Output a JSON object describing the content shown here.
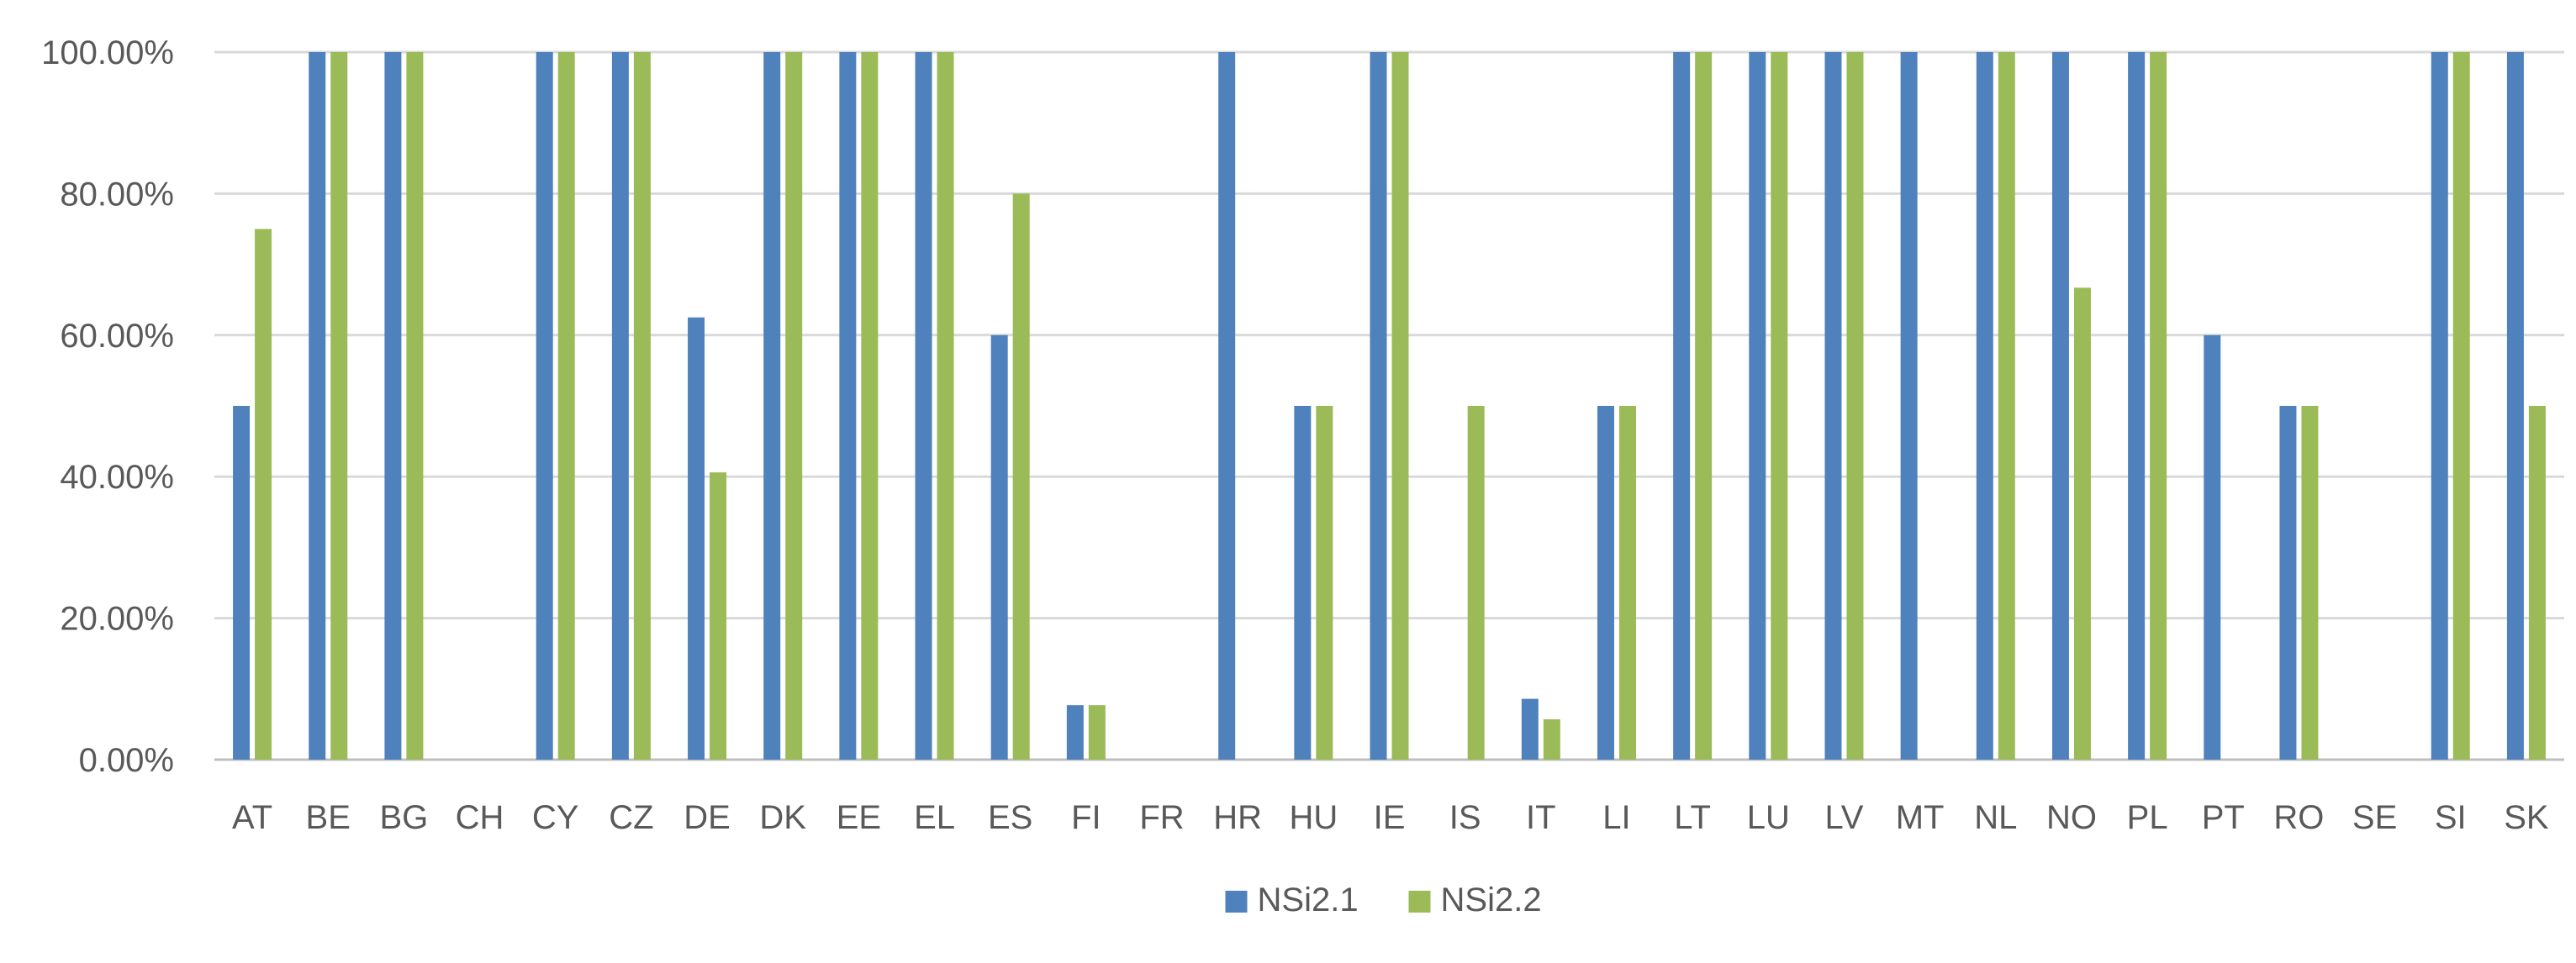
{
  "chart_data": {
    "type": "bar",
    "title": "",
    "xlabel": "",
    "ylabel": "",
    "ylim": [
      0,
      100
    ],
    "y_tick_values": [
      0,
      20,
      40,
      60,
      80,
      100
    ],
    "y_tick_labels": [
      "0.00%",
      "20.00%",
      "40.00%",
      "60.00%",
      "80.00%",
      "100.00%"
    ],
    "grid": true,
    "legend_position": "bottom",
    "categories": [
      "AT",
      "BE",
      "BG",
      "CH",
      "CY",
      "CZ",
      "DE",
      "DK",
      "EE",
      "EL",
      "ES",
      "FI",
      "FR",
      "HR",
      "HU",
      "IE",
      "IS",
      "IT",
      "LI",
      "LT",
      "LU",
      "LV",
      "MT",
      "NL",
      "NO",
      "PL",
      "PT",
      "RO",
      "SE",
      "SI",
      "SK"
    ],
    "series": [
      {
        "name": "NSi2.1",
        "color": "#4f81bd",
        "values": [
          50,
          100,
          100,
          0,
          100,
          100,
          62.5,
          100,
          100,
          100,
          60,
          7.7,
          0,
          100,
          50,
          100,
          0,
          8.6,
          50,
          100,
          100,
          100,
          100,
          100,
          100,
          100,
          60,
          50,
          0,
          100,
          100
        ]
      },
      {
        "name": "NSi2.2",
        "color": "#9bbb59",
        "values": [
          75,
          100,
          100,
          0,
          100,
          100,
          40.6,
          100,
          100,
          100,
          80,
          7.7,
          0,
          0,
          50,
          100,
          50,
          5.7,
          50,
          100,
          100,
          100,
          0,
          100,
          66.7,
          100,
          0,
          50,
          0,
          100,
          50
        ]
      }
    ]
  }
}
